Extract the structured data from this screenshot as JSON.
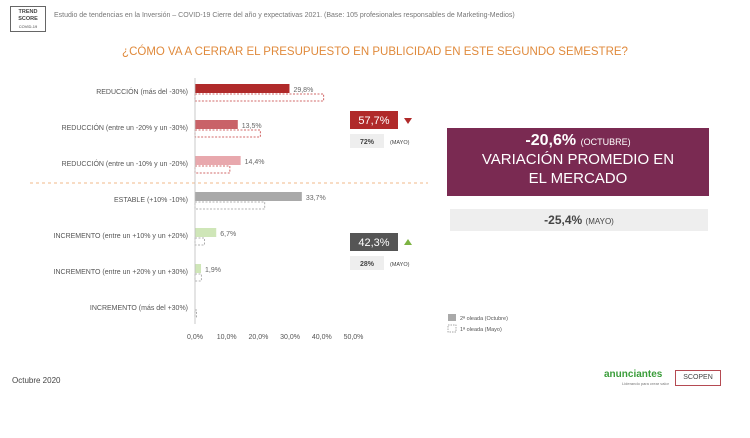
{
  "header": {
    "logo_line1": "TREND",
    "logo_line2": "SCORE",
    "logo_line3": "COVID-19",
    "subtitle": "Estudio de tendencias en la Inversión – COVID-19 Cierre del año y expectativas 2021. (Base: 105 profesionales responsables de Marketing-Medios)"
  },
  "question": "¿CÓMO VA A CERRAR EL PRESUPUESTO EN PUBLICIDAD EN ESTE SEGUNDO SEMESTRE?",
  "chart_data": {
    "type": "bar",
    "orientation": "horizontal",
    "categories": [
      "REDUCCIÓN (más del -30%)",
      "REDUCCIÓN (entre un -20% y un -30%)",
      "REDUCCIÓN (entre un -10% y un -20%)",
      "ESTABLE (+10% -10%)",
      "INCREMENTO (entre un +10% y un +20%)",
      "INCREMENTO (entre un +20% y un +30%)",
      "INCREMENTO (más del +30%)"
    ],
    "series": [
      {
        "name": "2ª oleada (Octubre)",
        "values": [
          29.8,
          13.5,
          14.4,
          33.7,
          6.7,
          1.9,
          0
        ],
        "labels": [
          "29,8%",
          "13,5%",
          "14,4%",
          "33,7%",
          "6,7%",
          "1,9%",
          ""
        ]
      },
      {
        "name": "1ª oleada (Mayo)",
        "values": [
          40.6,
          20.6,
          11.0,
          22.0,
          3.0,
          2.0,
          0.5
        ]
      }
    ],
    "colors": [
      "#b02a2a",
      "#c96268",
      "#e8a8ad",
      "#a9a9a9",
      "#cfe6b8",
      "#cfe6b8",
      "#cfe6b8"
    ],
    "xticks": [
      "0,0%",
      "10,0%",
      "20,0%",
      "30,0%",
      "40,0%",
      "50,0%"
    ],
    "xlim": [
      0,
      50
    ],
    "legend": {
      "s1": "2ª oleada (Octubre)",
      "s2": "1ª oleada (Mayo)",
      "position": "bottom-right"
    },
    "summary": {
      "reduction_oct": "57,7%",
      "reduction_may": "72%",
      "increase_oct": "42,3%",
      "increase_may": "28%",
      "may_label": "(MAYO)"
    }
  },
  "boxes": {
    "variation_value": "-20,6%",
    "variation_period": "(OCTUBRE)",
    "variation_label1": "VARIACIÓN PROMEDIO EN",
    "variation_label2": "EL MERCADO",
    "may_value": "-25,4%",
    "may_period": "(MAYO)"
  },
  "footer": {
    "date": "Octubre 2020",
    "brand1": "anunciantes",
    "brand1_tagline": "Liderando para crear valor",
    "brand2": "SCOPEN"
  }
}
